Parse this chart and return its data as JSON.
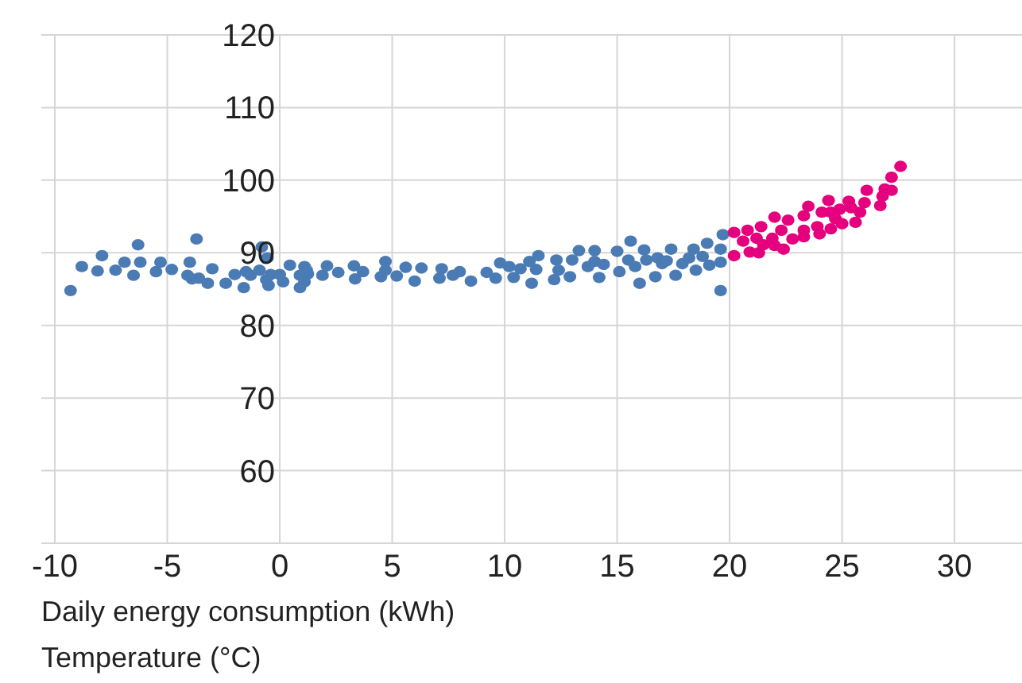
{
  "chart_data": {
    "type": "scatter",
    "xlabel": "Daily energy consumption (kWh)",
    "annotations": [
      "Temperature (°C)"
    ],
    "xlim": [
      -10.6,
      33
    ],
    "ylim": [
      50,
      120
    ],
    "xticks": [
      -10,
      -5,
      0,
      5,
      10,
      15,
      20,
      25,
      30
    ],
    "yticks": [
      60,
      70,
      80,
      90,
      100,
      110,
      120
    ],
    "grid": true,
    "marker": "circle",
    "series": [
      {
        "color": "#4a7bb5",
        "x": [
          -9.3,
          -8.8,
          -7.9,
          -8.1,
          -7.3,
          -6.9,
          -6.5,
          -6.3,
          -6.2,
          -5.5,
          -5.3,
          -4.8,
          -4.0,
          -4.1,
          -3.7,
          -3.9,
          -3.6,
          -3.2,
          -3.0,
          -2.4,
          -2.0,
          -1.6,
          -1.5,
          -1.3,
          -0.9,
          -0.8,
          -0.55,
          -0.6,
          -0.5,
          -0.4,
          0.0,
          0.15,
          0.45,
          0.9,
          0.9,
          1.1,
          1.1,
          1.25,
          1.2,
          1.9,
          2.1,
          2.6,
          3.3,
          3.35,
          3.7,
          4.5,
          4.7,
          4.7,
          5.2,
          5.6,
          6.0,
          6.3,
          7.1,
          7.2,
          7.7,
          8.0,
          8.5,
          9.2,
          9.6,
          9.8,
          10.2,
          10.4,
          10.7,
          11.1,
          11.2,
          11.5,
          11.4,
          12.2,
          12.3,
          12.4,
          12.9,
          13.0,
          13.3,
          13.7,
          14.0,
          14.0,
          14.2,
          14.4,
          15.0,
          15.1,
          15.5,
          15.6,
          15.8,
          16.0,
          16.2,
          16.3,
          16.7,
          16.8,
          17.0,
          17.2,
          17.4,
          17.6,
          17.9,
          18.2,
          18.4,
          18.5,
          18.8,
          19.0,
          19.1,
          19.6,
          19.6,
          19.6,
          19.7
        ],
        "values": [
          84.8,
          88.1,
          89.6,
          87.5,
          87.6,
          88.7,
          86.9,
          91.1,
          88.7,
          87.4,
          88.7,
          87.7,
          88.7,
          86.9,
          91.9,
          86.4,
          86.5,
          85.8,
          87.8,
          85.8,
          87.0,
          85.2,
          87.4,
          86.9,
          87.6,
          90.8,
          89.3,
          86.3,
          85.5,
          87.0,
          87.0,
          86.0,
          88.3,
          86.9,
          85.2,
          88.1,
          86.0,
          87.1,
          87.6,
          86.9,
          88.2,
          87.3,
          88.2,
          86.4,
          87.4,
          86.7,
          88.8,
          87.6,
          86.8,
          88.0,
          86.1,
          87.9,
          86.5,
          87.8,
          86.9,
          87.4,
          86.1,
          87.3,
          86.5,
          88.6,
          88.1,
          86.6,
          87.8,
          88.8,
          85.8,
          89.6,
          87.7,
          86.3,
          89.0,
          87.6,
          86.7,
          89.0,
          90.3,
          88.1,
          88.8,
          90.3,
          86.6,
          88.4,
          90.2,
          87.4,
          89.0,
          91.6,
          88.1,
          85.8,
          90.4,
          89.0,
          86.7,
          89.3,
          88.5,
          88.9,
          90.5,
          86.9,
          88.5,
          89.3,
          90.5,
          87.6,
          89.5,
          91.3,
          88.3,
          84.8,
          88.7,
          90.5,
          92.5
        ]
      },
      {
        "color": "#e5007d",
        "x": [
          20.2,
          20.2,
          20.6,
          20.8,
          20.9,
          21.2,
          21.3,
          21.4,
          21.5,
          21.9,
          22.0,
          22.0,
          22.3,
          22.4,
          22.6,
          22.8,
          23.3,
          23.3,
          23.3,
          23.5,
          23.9,
          24.0,
          24.1,
          24.4,
          24.5,
          24.5,
          24.7,
          24.9,
          25.0,
          25.3,
          25.4,
          25.6,
          25.8,
          26.0,
          26.1,
          26.7,
          26.8,
          26.9,
          27.2,
          27.2,
          27.6
        ],
        "values": [
          92.8,
          89.6,
          91.6,
          93.1,
          90.1,
          92.0,
          90.0,
          93.6,
          91.1,
          92.0,
          94.9,
          91.0,
          93.1,
          90.5,
          94.5,
          91.9,
          95.1,
          93.1,
          92.2,
          96.4,
          93.6,
          92.6,
          95.6,
          97.2,
          95.6,
          93.3,
          94.7,
          96.0,
          94.0,
          97.1,
          96.2,
          94.2,
          95.6,
          96.9,
          98.6,
          96.5,
          97.8,
          98.8,
          100.4,
          98.6,
          101.9
        ]
      }
    ]
  }
}
